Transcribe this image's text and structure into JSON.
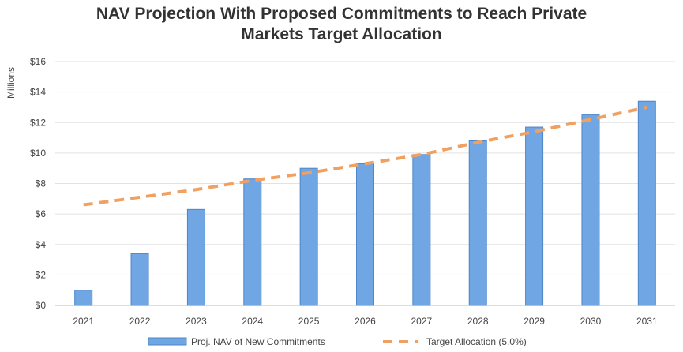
{
  "chart_data": {
    "type": "bar",
    "title_lines": [
      "NAV Projection With Proposed Commitments to Reach Private",
      "Markets Target Allocation"
    ],
    "ylabel": "Millions",
    "xlabel": "",
    "ylim": [
      0,
      16
    ],
    "y_ticks": [
      0,
      2,
      4,
      6,
      8,
      10,
      12,
      14,
      16
    ],
    "y_tick_labels": [
      "$0",
      "$2",
      "$4",
      "$6",
      "$8",
      "$10",
      "$12",
      "$14",
      "$16"
    ],
    "categories": [
      "2021",
      "2022",
      "2023",
      "2024",
      "2025",
      "2026",
      "2027",
      "2028",
      "2029",
      "2030",
      "2031"
    ],
    "grid": true,
    "legend_position": "bottom",
    "series": [
      {
        "name": "Proj. NAV of New Commitments",
        "kind": "bar",
        "color": "#6fa6e3",
        "values": [
          1.0,
          3.4,
          6.3,
          8.3,
          9.0,
          9.3,
          9.9,
          10.8,
          11.7,
          12.5,
          13.4
        ]
      },
      {
        "name": "Target Allocation (5.0%)",
        "kind": "dashed-line",
        "color": "#f0a060",
        "values": [
          6.6,
          7.1,
          7.6,
          8.2,
          8.7,
          9.3,
          9.9,
          10.7,
          11.4,
          12.2,
          13.0
        ]
      }
    ]
  }
}
